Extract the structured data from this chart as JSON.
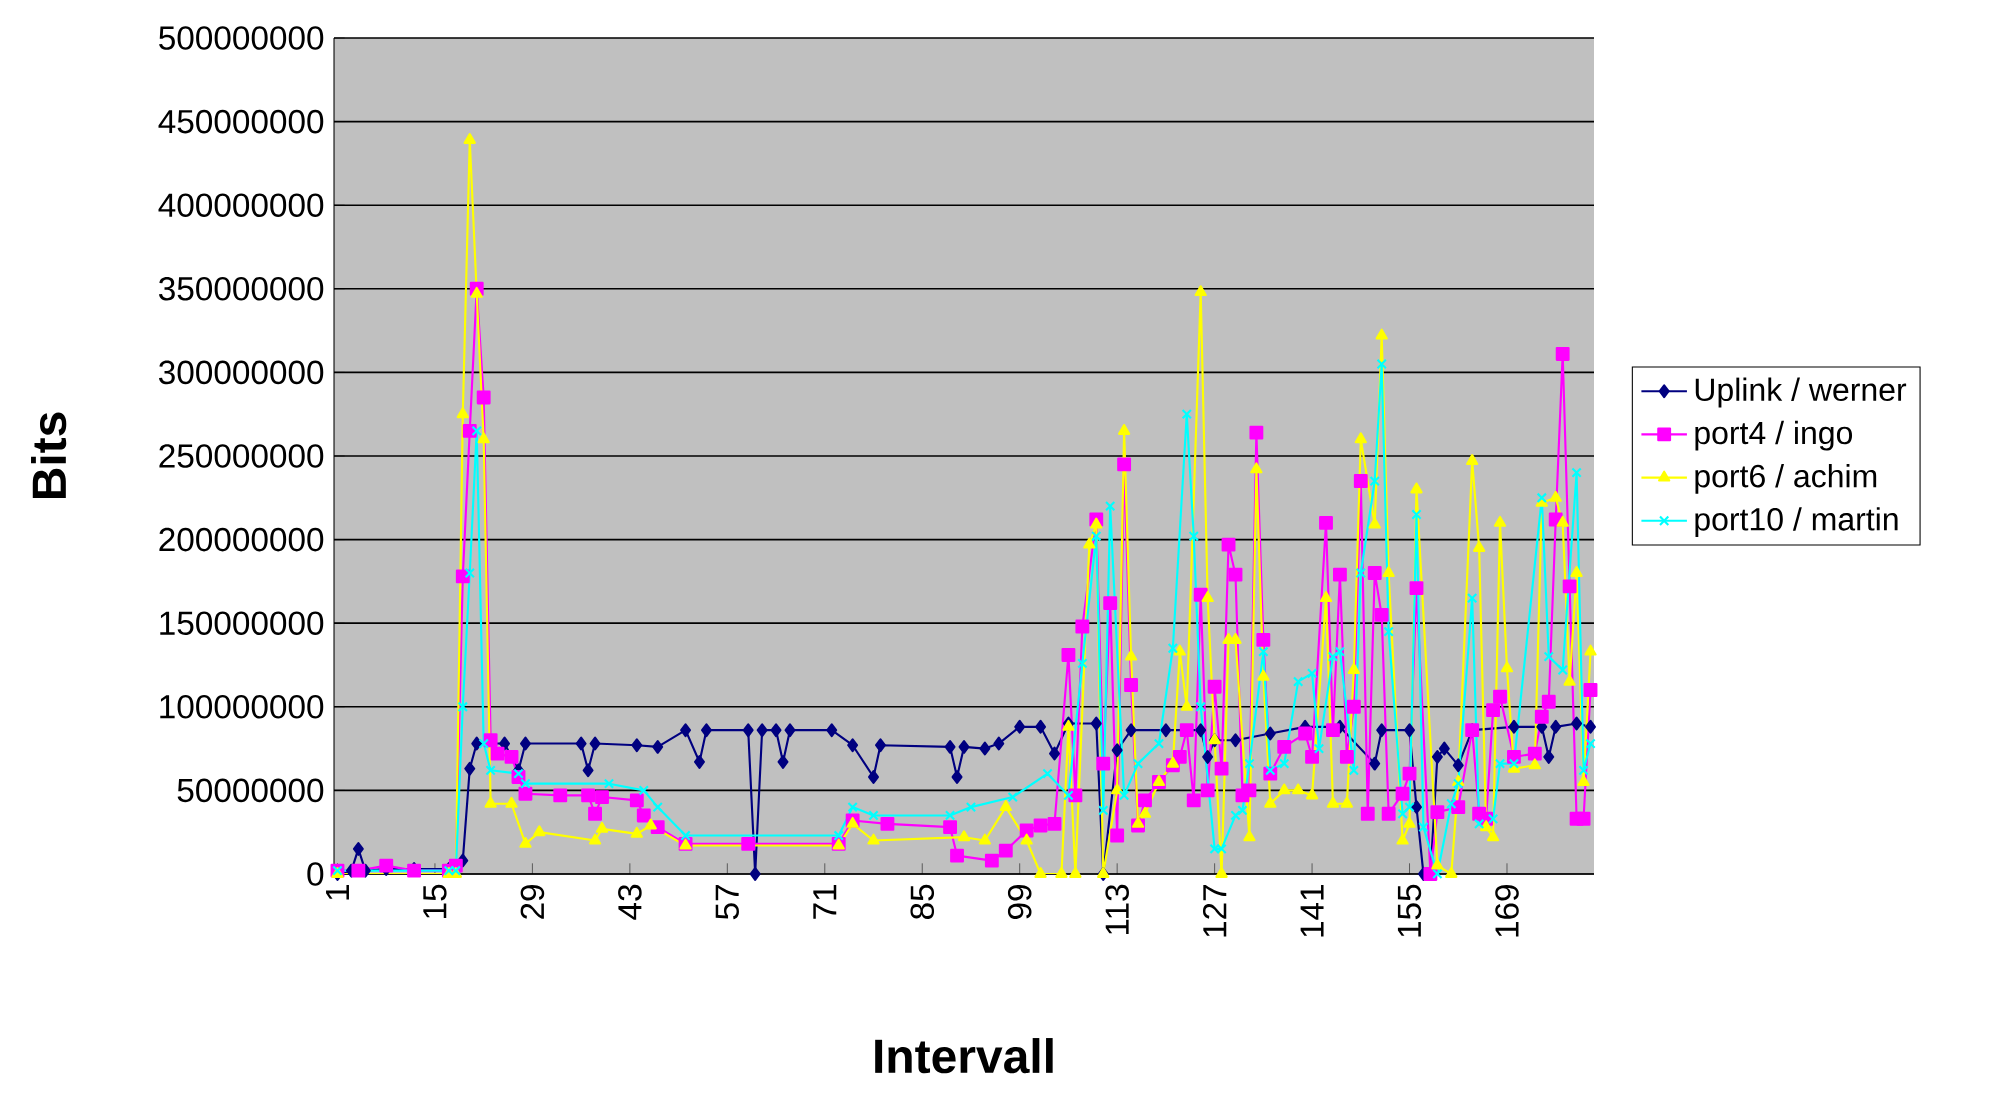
{
  "chart_data": {
    "type": "line",
    "xlabel": "Intervall",
    "ylabel": "Bits",
    "xlim": [
      0.5,
      181.5
    ],
    "xticks": [
      1,
      15,
      29,
      43,
      57,
      71,
      85,
      99,
      113,
      127,
      141,
      155,
      169
    ],
    "ylim": [
      0,
      500000000
    ],
    "yticks": [
      0,
      50000000,
      100000000,
      150000000,
      200000000,
      250000000,
      300000000,
      350000000,
      400000000,
      450000000,
      500000000
    ],
    "grid": "y",
    "legend": "right",
    "series": [
      {
        "name": "Uplink / werner",
        "color": "#000080",
        "marker": "diamond",
        "x": [
          1,
          3,
          4,
          5,
          8,
          12,
          17,
          18,
          19,
          20,
          21,
          25,
          27,
          28,
          36,
          37,
          38,
          44,
          47,
          51,
          53,
          54,
          60,
          61,
          62,
          64,
          65,
          66,
          72,
          75,
          78,
          79,
          89,
          90,
          91,
          94,
          96,
          99,
          102,
          104,
          106,
          110,
          111,
          113,
          115,
          120,
          125,
          126,
          127,
          130,
          135,
          140,
          145,
          150,
          151,
          155,
          156,
          157,
          158,
          159,
          160,
          162,
          164,
          170,
          174,
          175,
          176,
          179,
          181
        ],
        "values": [
          0,
          2000000,
          15000000,
          2000000,
          3000000,
          3000000,
          3000000,
          2000000,
          8000000,
          63000000,
          78000000,
          78000000,
          62000000,
          78000000,
          78000000,
          62000000,
          78000000,
          77000000,
          76000000,
          86000000,
          67000000,
          86000000,
          86000000,
          0,
          86000000,
          86000000,
          67000000,
          86000000,
          86000000,
          77000000,
          58000000,
          77000000,
          76000000,
          58000000,
          76000000,
          75000000,
          78000000,
          88000000,
          88000000,
          72000000,
          90000000,
          90000000,
          0,
          74000000,
          86000000,
          86000000,
          86000000,
          70000000,
          80000000,
          80000000,
          84000000,
          88000000,
          88000000,
          66000000,
          86000000,
          86000000,
          40000000,
          0,
          0,
          70000000,
          75000000,
          65000000,
          86000000,
          88000000,
          88000000,
          70000000,
          88000000,
          90000000,
          88000000
        ]
      },
      {
        "name": "port4 / ingo",
        "color": "#ff00ff",
        "marker": "square",
        "x": [
          1,
          4,
          8,
          12,
          17,
          18,
          19,
          20,
          21,
          22,
          23,
          24,
          26,
          27,
          28,
          33,
          37,
          38,
          39,
          44,
          45,
          47,
          51,
          60,
          73,
          75,
          80,
          89,
          90,
          95,
          97,
          100,
          102,
          104,
          106,
          107,
          108,
          110,
          111,
          112,
          113,
          114,
          115,
          116,
          117,
          119,
          121,
          122,
          123,
          124,
          125,
          126,
          127,
          128,
          129,
          130,
          131,
          132,
          133,
          134,
          135,
          137,
          140,
          141,
          143,
          144,
          145,
          146,
          147,
          148,
          149,
          150,
          151,
          152,
          154,
          155,
          156,
          158,
          159,
          162,
          164,
          165,
          166,
          167,
          168,
          170,
          173,
          174,
          175,
          176,
          177,
          178,
          179,
          180,
          181
        ],
        "values": [
          2000000,
          2000000,
          5000000,
          2000000,
          2000000,
          5000000,
          178000000,
          265000000,
          350000000,
          285000000,
          80000000,
          72000000,
          70000000,
          58000000,
          48000000,
          47000000,
          47000000,
          36000000,
          46000000,
          44000000,
          35000000,
          28000000,
          18000000,
          18000000,
          18000000,
          32000000,
          30000000,
          28000000,
          11000000,
          8000000,
          14000000,
          26000000,
          29000000,
          30000000,
          131000000,
          47000000,
          148000000,
          212000000,
          66000000,
          162000000,
          23000000,
          245000000,
          113000000,
          29000000,
          44000000,
          55000000,
          65000000,
          70000000,
          86000000,
          44000000,
          167000000,
          50000000,
          112000000,
          63000000,
          197000000,
          179000000,
          47000000,
          50000000,
          264000000,
          140000000,
          60000000,
          76000000,
          84000000,
          70000000,
          210000000,
          86000000,
          179000000,
          70000000,
          100000000,
          235000000,
          36000000,
          180000000,
          155000000,
          36000000,
          48000000,
          60000000,
          171000000,
          0,
          37000000,
          40000000,
          86000000,
          36000000,
          33000000,
          98000000,
          106000000,
          70000000,
          72000000,
          94000000,
          103000000,
          212000000,
          311000000,
          172000000,
          33000000,
          33000000,
          110000000
        ]
      },
      {
        "name": "port6 / achim",
        "color": "#ffff00",
        "marker": "triangle",
        "x": [
          1,
          17,
          18,
          19,
          20,
          21,
          22,
          23,
          26,
          28,
          30,
          38,
          39,
          44,
          46,
          51,
          73,
          75,
          78,
          91,
          94,
          97,
          100,
          102,
          105,
          106,
          107,
          109,
          110,
          111,
          113,
          114,
          115,
          116,
          117,
          119,
          121,
          122,
          123,
          125,
          126,
          127,
          128,
          129,
          130,
          132,
          133,
          134,
          135,
          137,
          139,
          141,
          143,
          144,
          146,
          147,
          148,
          150,
          151,
          152,
          154,
          155,
          156,
          159,
          161,
          162,
          164,
          165,
          166,
          167,
          168,
          169,
          170,
          173,
          174,
          176,
          177,
          178,
          179,
          180,
          181
        ],
        "values": [
          0,
          0,
          0,
          275000000,
          439000000,
          347000000,
          260000000,
          42000000,
          42000000,
          18000000,
          25000000,
          20000000,
          27000000,
          24000000,
          29000000,
          17000000,
          17000000,
          30000000,
          20000000,
          22000000,
          20000000,
          40000000,
          20000000,
          0,
          0,
          88000000,
          0,
          197000000,
          209000000,
          0,
          50000000,
          265000000,
          130000000,
          30000000,
          36000000,
          55000000,
          66000000,
          133000000,
          100000000,
          348000000,
          165000000,
          80000000,
          0,
          140000000,
          140000000,
          22000000,
          242000000,
          118000000,
          42000000,
          50000000,
          50000000,
          47000000,
          165000000,
          42000000,
          42000000,
          122000000,
          260000000,
          209000000,
          322000000,
          180000000,
          20000000,
          30000000,
          230000000,
          5000000,
          0,
          55000000,
          247000000,
          195000000,
          28000000,
          22000000,
          210000000,
          123000000,
          63000000,
          65000000,
          222000000,
          225000000,
          210000000,
          115000000,
          180000000,
          55000000,
          133000000
        ]
      },
      {
        "name": "port10 / martin",
        "color": "#00ffff",
        "marker": "cross",
        "x": [
          1,
          17,
          18,
          19,
          20,
          21,
          22,
          23,
          27,
          28,
          40,
          45,
          47,
          51,
          73,
          75,
          78,
          89,
          92,
          98,
          103,
          106,
          108,
          110,
          111,
          112,
          114,
          116,
          119,
          121,
          123,
          124,
          125,
          127,
          128,
          130,
          131,
          132,
          134,
          135,
          137,
          139,
          141,
          142,
          144,
          145,
          147,
          148,
          150,
          151,
          152,
          154,
          155,
          156,
          157,
          159,
          161,
          162,
          164,
          165,
          167,
          168,
          170,
          174,
          175,
          177,
          179,
          180,
          181
        ],
        "values": [
          2000000,
          2000000,
          2000000,
          100000000,
          180000000,
          265000000,
          78000000,
          62000000,
          60000000,
          54000000,
          54000000,
          50000000,
          40000000,
          23000000,
          23000000,
          40000000,
          35000000,
          35000000,
          40000000,
          46000000,
          60000000,
          47000000,
          126000000,
          202000000,
          38000000,
          220000000,
          47000000,
          66000000,
          78000000,
          135000000,
          275000000,
          202000000,
          100000000,
          15000000,
          15000000,
          35000000,
          38000000,
          66000000,
          133000000,
          62000000,
          66000000,
          115000000,
          120000000,
          75000000,
          130000000,
          133000000,
          62000000,
          180000000,
          235000000,
          305000000,
          145000000,
          36000000,
          40000000,
          215000000,
          28000000,
          0,
          42000000,
          54000000,
          165000000,
          30000000,
          33000000,
          66000000,
          66000000,
          225000000,
          130000000,
          122000000,
          240000000,
          62000000,
          78000000
        ]
      }
    ]
  }
}
